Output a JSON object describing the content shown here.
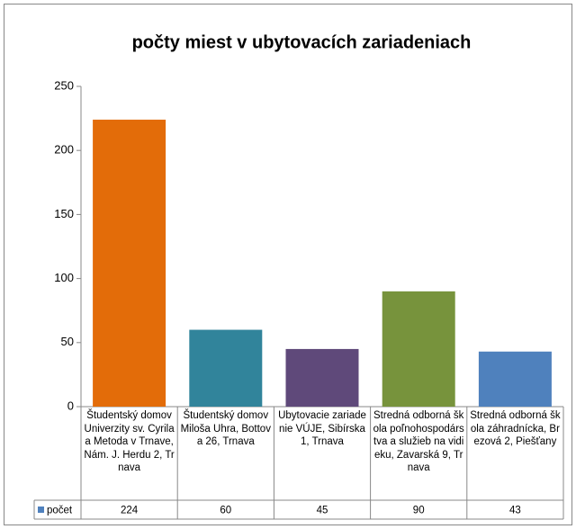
{
  "chart_data": {
    "type": "bar",
    "title": "počty miest v ubytovacích zariadeniach",
    "categories": [
      "Študentský domov Univerzity sv. Cyrila a Metoda v Trnave, Nám. J. Herdu 2, Trnava",
      "Študentský domov Miloša Uhra, Bottova 26, Trnava",
      "Ubytovacie zariadenie VÚJE, Sibírska 1, Trnava",
      "Stredná odborná škola poľnohospodárstva a služieb na vidieku, Zavarská 9, Trnava",
      "Stredná odborná škola záhradnícka, Brezová 2, Piešťany"
    ],
    "series": [
      {
        "name": "počet",
        "color": "#4f81bd",
        "values": [
          224,
          60,
          45,
          90,
          43
        ]
      }
    ],
    "colors": [
      "#e36c09",
      "#31849b",
      "#5f497a",
      "#77933c",
      "#4f81bd"
    ],
    "ylim": [
      0,
      250
    ],
    "yticks": [
      0,
      50,
      100,
      150,
      200,
      250
    ],
    "grid": false,
    "data_table": true
  }
}
